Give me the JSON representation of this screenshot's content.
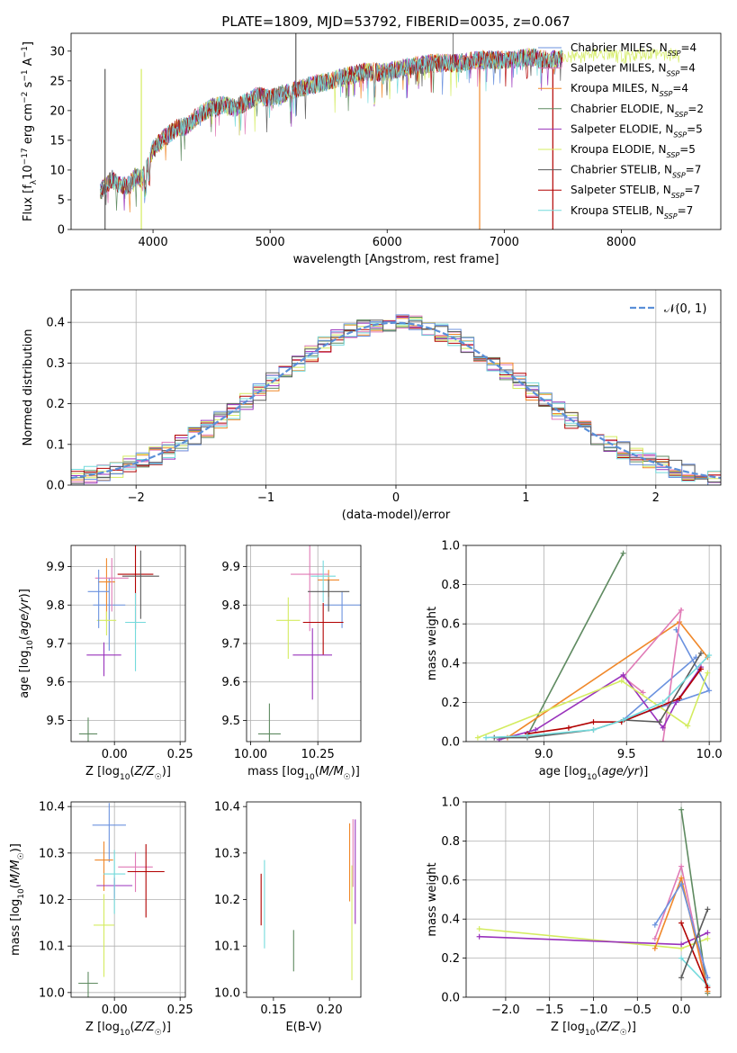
{
  "title": "PLATE=1809, MJD=53792, FIBERID=0035, z=0.067",
  "colors": [
    "#e07ab6",
    "#f0882a",
    "#5e8a60",
    "#9932bc",
    "#d4ec60",
    "#5a5a5a",
    "#b20000",
    "#74dadc",
    "#6b92df"
  ],
  "chart_data": [
    {
      "id": "spectrum",
      "type": "line",
      "xlabel": "wavelength [Angstrom, rest frame]",
      "ylabel": "Flux [f_λ10^-17 erg cm^-2 s^-1 A^-1]",
      "xlim": [
        3300,
        8850
      ],
      "ylim": [
        0,
        33
      ],
      "xticks": [
        4000,
        5000,
        6000,
        7000,
        8000
      ],
      "yticks": [
        0,
        5,
        10,
        15,
        20,
        25,
        30
      ],
      "continuum": {
        "x": [
          3550,
          3650,
          3700,
          3800,
          3850,
          3900,
          3950,
          4000,
          4100,
          4200,
          4300,
          4400,
          4500,
          4600,
          4700,
          4800,
          4900,
          5000,
          5200,
          5400,
          5600,
          5800,
          6000,
          6200,
          6400,
          6600,
          6800,
          7000,
          7200,
          7400,
          7600,
          7800,
          8000,
          8200,
          8400,
          8500
        ],
        "y": [
          6.5,
          8.5,
          7.5,
          7.5,
          9,
          8.5,
          10.5,
          13.5,
          15.5,
          17,
          17.5,
          19.5,
          20.5,
          21,
          20.5,
          21.5,
          22.5,
          22,
          23.5,
          24.5,
          25.5,
          26.5,
          26.5,
          27.5,
          28,
          28,
          28.5,
          28.5,
          29,
          28.5,
          29,
          29.5,
          29,
          29.5,
          29.5,
          29
        ]
      },
      "series": [
        {
          "name": "Chabrier MILES, N_SSP=4"
        },
        {
          "name": "Salpeter MILES, N_SSP=4"
        },
        {
          "name": "Kroupa MILES, N_SSP=4"
        },
        {
          "name": "Chabrier ELODIE, N_SSP=2"
        },
        {
          "name": "Salpeter ELODIE, N_SSP=5"
        },
        {
          "name": "Kroupa ELODIE, N_SSP=5"
        },
        {
          "name": "Chabrier STELIB, N_SSP=7"
        },
        {
          "name": "Salpeter STELIB, N_SSP=7"
        },
        {
          "name": "Kroupa STELIB, N_SSP=7"
        }
      ]
    },
    {
      "id": "residuals",
      "type": "line",
      "xlabel": "(data-model)/error",
      "ylabel": "Normed distribution",
      "xlim": [
        -2.5,
        2.5
      ],
      "ylim": [
        0,
        0.48
      ],
      "xticks": [
        -2,
        -1,
        0,
        1,
        2
      ],
      "xticklabels": [
        "−2",
        "−1",
        "0",
        "1",
        "2"
      ],
      "yticks": [
        0,
        0.1,
        0.2,
        0.3,
        0.4
      ],
      "yticklabels": [
        "0.0",
        "0.1",
        "0.2",
        "0.3",
        "0.4"
      ],
      "grid": true,
      "bin_width": 0.1,
      "gaussian_label": "𝒩(0, 1)"
    },
    {
      "id": "z-age",
      "type": "scatter",
      "xlabel": "Z [log10(Z/Z☉)]",
      "ylabel": "age  [log10(age/yr)]",
      "xlim": [
        -0.165,
        0.27
      ],
      "ylim": [
        9.445,
        9.955
      ],
      "xticks": [
        0,
        0.25
      ],
      "xticklabels": [
        "0.00",
        "0.25"
      ],
      "yticks": [
        9.5,
        9.6,
        9.7,
        9.8,
        9.9
      ],
      "yticklabels": [
        "9.5",
        "9.6",
        "9.7",
        "9.8",
        "9.9"
      ],
      "grid": true,
      "points": [
        {
          "x": -0.02,
          "y": 9.8
        },
        {
          "x": -0.03,
          "y": 9.86
        },
        {
          "x": -0.01,
          "y": 9.87
        },
        {
          "x": -0.1,
          "y": 9.465
        },
        {
          "x": -0.04,
          "y": 9.67
        },
        {
          "x": -0.03,
          "y": 9.76
        },
        {
          "x": 0.08,
          "y": 9.88
        },
        {
          "x": 0.08,
          "y": 9.755
        },
        {
          "x": 0.1,
          "y": 9.875
        },
        {
          "x": -0.06,
          "y": 9.835
        }
      ]
    },
    {
      "id": "mass-age",
      "type": "scatter",
      "xlabel": "mass [log10(M/M☉)]",
      "ylabel": "",
      "xlim": [
        9.985,
        10.41
      ],
      "ylim": [
        9.445,
        9.955
      ],
      "xticks": [
        10.0,
        10.25
      ],
      "xticklabels": [
        "10.00",
        "10.25"
      ],
      "yticks": [
        9.5,
        9.6,
        9.7,
        9.8,
        9.9
      ],
      "yticklabels": [
        "9.5",
        "9.6",
        "9.7",
        "9.8",
        "9.9"
      ],
      "grid": true,
      "points": [
        {
          "x": 10.34,
          "y": 9.8
        },
        {
          "x": 10.29,
          "y": 9.865
        },
        {
          "x": 10.22,
          "y": 9.88
        },
        {
          "x": 10.07,
          "y": 9.465
        },
        {
          "x": 10.23,
          "y": 9.67
        },
        {
          "x": 10.14,
          "y": 9.76
        },
        {
          "x": 10.27,
          "y": 9.755
        },
        {
          "x": 10.27,
          "y": 9.875
        },
        {
          "x": 10.29,
          "y": 9.835
        }
      ]
    },
    {
      "id": "age-weight",
      "type": "line",
      "xlabel": "age  [log10(age/yr)]",
      "ylabel": "mass weight",
      "xlim": [
        8.53,
        10.07
      ],
      "ylim": [
        0,
        1.0
      ],
      "xticks": [
        9.0,
        9.5,
        10.0
      ],
      "xticklabels": [
        "9.0",
        "9.5",
        "10.0"
      ],
      "yticks": [
        0,
        0.2,
        0.4,
        0.6,
        0.8,
        1.0
      ],
      "yticklabels": [
        "0.0",
        "0.2",
        "0.4",
        "0.6",
        "0.8",
        "1.0"
      ],
      "grid": true,
      "series": [
        {
          "name": "Chabrier ELODIE",
          "color": "#5e8a60",
          "x": [
            8.9,
            9.48
          ],
          "y": [
            0.03,
            0.96
          ]
        },
        {
          "name": "Kroupa MILES",
          "color": "#f0882a",
          "x": [
            8.78,
            9.82,
            9.99
          ],
          "y": [
            0.02,
            0.61,
            0.43
          ]
        },
        {
          "name": "Chabrier MILES",
          "color": "#6b92df",
          "x": [
            9.8,
            10.0,
            9.48,
            9.92
          ],
          "y": [
            0.57,
            0.26,
            0.11,
            0.43
          ]
        },
        {
          "name": "Salpeter MILES",
          "color": "#e07ab6",
          "x": [
            9.72,
            9.83,
            9.48,
            9.6
          ],
          "y": [
            0.0,
            0.67,
            0.33,
            0.25
          ]
        },
        {
          "name": "Salpeter ELODIE",
          "color": "#9932bc",
          "x": [
            8.73,
            8.95,
            9.48,
            9.72,
            9.8,
            9.95
          ],
          "y": [
            0.01,
            0.06,
            0.34,
            0.07,
            0.2,
            0.38
          ]
        },
        {
          "name": "Kroupa ELODIE",
          "color": "#d4ec60",
          "x": [
            8.6,
            9.47,
            9.87,
            9.99
          ],
          "y": [
            0.02,
            0.31,
            0.08,
            0.35
          ]
        },
        {
          "name": "Salpeter STELIB",
          "color": "#b20000",
          "x": [
            8.9,
            9.15,
            9.3,
            9.47,
            9.82,
            9.95
          ],
          "y": [
            0.04,
            0.07,
            0.1,
            0.1,
            0.22,
            0.37
          ]
        },
        {
          "name": "Chabrier STELIB",
          "color": "#5a5a5a",
          "x": [
            8.7,
            8.9,
            9.3,
            9.48,
            9.7,
            9.95
          ],
          "y": [
            0.02,
            0.02,
            0.06,
            0.11,
            0.1,
            0.45
          ]
        },
        {
          "name": "Kroupa STELIB",
          "color": "#74dadc",
          "x": [
            8.65,
            8.9,
            9.3,
            9.48,
            9.72,
            10.0
          ],
          "y": [
            0.02,
            0.03,
            0.06,
            0.11,
            0.2,
            0.44
          ]
        }
      ]
    },
    {
      "id": "z-mass",
      "type": "scatter",
      "xlabel": "Z [log10(Z/Z☉)]",
      "ylabel": "mass [log10(M/M☉)]",
      "xlim": [
        -0.165,
        0.27
      ],
      "ylim": [
        9.99,
        10.41
      ],
      "xticks": [
        0,
        0.25
      ],
      "xticklabels": [
        "0.00",
        "0.25"
      ],
      "yticks": [
        10.0,
        10.1,
        10.2,
        10.3,
        10.4
      ],
      "yticklabels": [
        "10.0",
        "10.1",
        "10.2",
        "10.3",
        "10.4"
      ],
      "grid": true,
      "points": [
        {
          "x": -0.02,
          "y": 10.36
        },
        {
          "x": -0.04,
          "y": 10.285
        },
        {
          "x": 0.08,
          "y": 10.27
        },
        {
          "x": -0.1,
          "y": 10.02
        },
        {
          "x": 0.0,
          "y": 10.23
        },
        {
          "x": -0.04,
          "y": 10.145
        },
        {
          "x": 0.12,
          "y": 10.26
        },
        {
          "x": 0.0,
          "y": 10.255
        }
      ]
    },
    {
      "id": "ebv-mass",
      "type": "scatter",
      "xlabel": "E(B-V)",
      "ylabel": "",
      "xlim": [
        0.126,
        0.228
      ],
      "ylim": [
        9.99,
        10.41
      ],
      "xticks": [
        0.15,
        0.2
      ],
      "xticklabels": [
        "0.15",
        "0.20"
      ],
      "yticks": [
        10.0,
        10.1,
        10.2,
        10.3,
        10.4
      ],
      "yticklabels": [
        "10.0",
        "10.1",
        "10.2",
        "10.3",
        "10.4"
      ],
      "points": [
        {
          "x": 0.139,
          "y": 10.2
        },
        {
          "x": 0.142,
          "y": 10.19
        },
        {
          "x": 0.168,
          "y": 10.09
        },
        {
          "x": 0.218,
          "y": 10.28
        },
        {
          "x": 0.22,
          "y": 10.15
        },
        {
          "x": 0.221,
          "y": 10.3
        },
        {
          "x": 0.223,
          "y": 10.26
        }
      ]
    },
    {
      "id": "z-weight",
      "type": "line",
      "xlabel": "Z [log10(Z/Z☉)]",
      "ylabel": "mass weight",
      "xlim": [
        -2.45,
        0.45
      ],
      "ylim": [
        0,
        1.0
      ],
      "xticks": [
        -2.0,
        -1.5,
        -1.0,
        -0.5,
        0.0
      ],
      "xticklabels": [
        "−2.0",
        "−1.5",
        "−1.0",
        "−0.5",
        "0.0"
      ],
      "yticks": [
        0,
        0.2,
        0.4,
        0.6,
        0.8,
        1.0
      ],
      "yticklabels": [
        "0.0",
        "0.2",
        "0.4",
        "0.6",
        "0.8",
        "1.0"
      ],
      "grid": true,
      "series": [
        {
          "name": "Kroupa ELODIE",
          "color": "#d4ec60",
          "x": [
            -2.3,
            0.0,
            0.3
          ],
          "y": [
            0.35,
            0.25,
            0.3
          ]
        },
        {
          "name": "Salpeter ELODIE",
          "color": "#9932bc",
          "x": [
            -2.3,
            0.0,
            0.3
          ],
          "y": [
            0.31,
            0.27,
            0.33
          ]
        },
        {
          "name": "Chabrier ELODIE",
          "color": "#5e8a60",
          "x": [
            0.0,
            0.3
          ],
          "y": [
            0.96,
            0.02
          ]
        },
        {
          "name": "Salpeter MILES",
          "color": "#e07ab6",
          "x": [
            -0.3,
            0.0,
            0.3
          ],
          "y": [
            0.3,
            0.67,
            0.03
          ]
        },
        {
          "name": "Kroupa MILES",
          "color": "#f0882a",
          "x": [
            -0.3,
            0.0,
            0.3
          ],
          "y": [
            0.25,
            0.61,
            0.03
          ]
        },
        {
          "name": "Chabrier MILES",
          "color": "#6b92df",
          "x": [
            -0.3,
            0.0,
            0.3
          ],
          "y": [
            0.37,
            0.58,
            0.1
          ]
        },
        {
          "name": "Kroupa STELIB",
          "color": "#74dadc",
          "x": [
            0.0,
            0.3
          ],
          "y": [
            0.2,
            0.06
          ]
        },
        {
          "name": "Salpeter STELIB",
          "color": "#b20000",
          "x": [
            0.0,
            0.3
          ],
          "y": [
            0.38,
            0.05
          ]
        },
        {
          "name": "Chabrier STELIB",
          "color": "#5a5a5a",
          "x": [
            0.0,
            0.3
          ],
          "y": [
            0.1,
            0.45
          ]
        }
      ]
    }
  ]
}
